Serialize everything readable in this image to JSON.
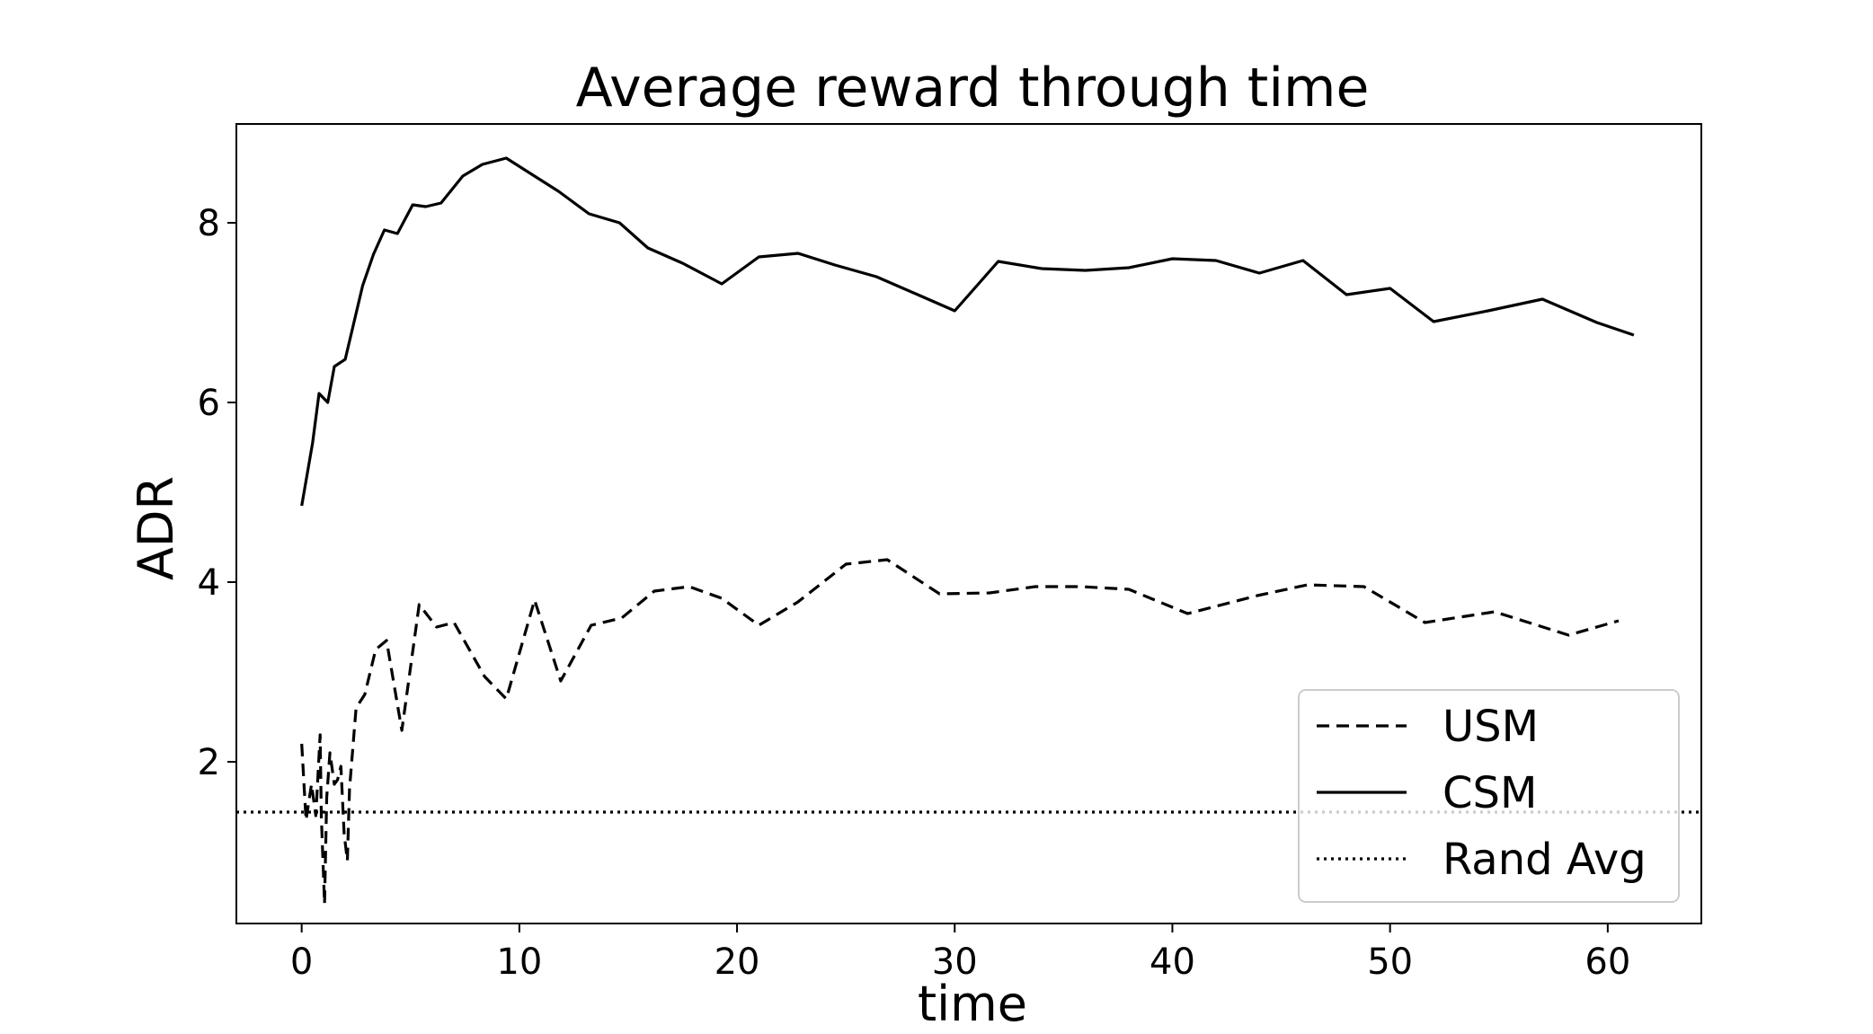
{
  "chart_data": {
    "type": "line",
    "title": "Average reward through time",
    "xlabel": "time",
    "ylabel": "ADR",
    "xlim": [
      -3,
      64.3
    ],
    "ylim": [
      0.2,
      9.1
    ],
    "xticks": [
      0,
      10,
      20,
      30,
      40,
      50,
      60
    ],
    "yticks": [
      2,
      4,
      6,
      8
    ],
    "grid": false,
    "legend": "lower-right",
    "series": [
      {
        "name": "USM",
        "style": "dashed",
        "color": "#000000",
        "x": [
          0.0,
          0.2,
          0.45,
          0.65,
          0.85,
          0.9,
          1.05,
          1.15,
          1.3,
          1.5,
          1.65,
          1.8,
          1.95,
          2.1,
          2.2,
          2.5,
          2.9,
          3.4,
          3.9,
          4.6,
          5.4,
          6.2,
          7.0,
          8.4,
          9.4,
          10.7,
          11.9,
          13.3,
          14.7,
          16.2,
          17.8,
          19.3,
          21.0,
          22.8,
          25.0,
          26.9,
          29.3,
          31.6,
          33.7,
          35.8,
          38.0,
          40.7,
          43.9,
          46.2,
          48.8,
          51.6,
          54.8,
          58.2,
          60.5
        ],
        "y": [
          2.2,
          1.35,
          1.75,
          1.4,
          2.3,
          1.4,
          0.42,
          1.6,
          2.1,
          1.75,
          1.8,
          1.95,
          1.2,
          0.9,
          1.7,
          2.6,
          2.75,
          3.25,
          3.35,
          2.35,
          3.75,
          3.5,
          3.55,
          2.95,
          2.7,
          3.8,
          2.9,
          3.52,
          3.6,
          3.9,
          3.95,
          3.82,
          3.52,
          3.78,
          4.2,
          4.25,
          3.87,
          3.88,
          3.95,
          3.95,
          3.92,
          3.65,
          3.85,
          3.97,
          3.95,
          3.55,
          3.67,
          3.41,
          3.57
        ]
      },
      {
        "name": "CSM",
        "style": "solid",
        "color": "#000000",
        "x": [
          0.0,
          0.5,
          0.8,
          1.2,
          1.5,
          2.0,
          2.8,
          3.3,
          3.8,
          4.4,
          5.1,
          5.7,
          6.4,
          7.4,
          8.3,
          9.4,
          10.5,
          11.8,
          13.2,
          14.6,
          15.9,
          17.5,
          19.3,
          21.0,
          22.8,
          24.5,
          26.4,
          28.3,
          30.0,
          32.0,
          34.0,
          36.0,
          38.0,
          40.0,
          42.0,
          44.0,
          46.0,
          48.0,
          50.0,
          52.0,
          54.5,
          57.0,
          59.5,
          61.2
        ],
        "y": [
          4.85,
          5.55,
          6.1,
          6.0,
          6.4,
          6.48,
          7.3,
          7.65,
          7.92,
          7.88,
          8.2,
          8.18,
          8.22,
          8.52,
          8.65,
          8.72,
          8.55,
          8.35,
          8.1,
          8.0,
          7.72,
          7.55,
          7.32,
          7.62,
          7.66,
          7.53,
          7.4,
          7.2,
          7.02,
          7.57,
          7.49,
          7.47,
          7.5,
          7.6,
          7.58,
          7.44,
          7.58,
          7.2,
          7.27,
          6.9,
          7.02,
          7.15,
          6.89,
          6.75
        ]
      },
      {
        "name": "Rand Avg",
        "style": "dotted",
        "color": "#000000",
        "x": [
          -3,
          64.3
        ],
        "y": [
          1.44,
          1.44
        ]
      }
    ]
  }
}
